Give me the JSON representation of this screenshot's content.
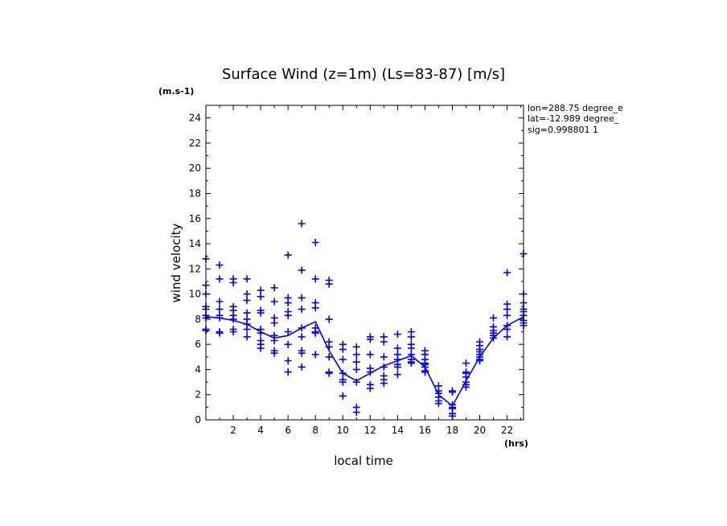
{
  "chart_data": {
    "type": "scatter",
    "title": "Surface Wind (z=1m) (Ls=83-87) [m/s]",
    "xlabel": "local time",
    "ylabel": "wind velocity",
    "x_unit": "(hrs)",
    "y_unit": "(m.s-1)",
    "xlim": [
      0,
      23.2
    ],
    "ylim": [
      0,
      25
    ],
    "xticks": [
      2,
      4,
      6,
      8,
      10,
      12,
      14,
      16,
      18,
      20,
      22
    ],
    "yticks": [
      0,
      2,
      4,
      6,
      8,
      10,
      12,
      14,
      16,
      18,
      20,
      22,
      24
    ],
    "grid": false,
    "color": "#0000ff",
    "annotations": [
      "lon=288.75 degree_e",
      "lat=-12.989 degree_",
      "sig=0.998801 1"
    ],
    "mean_line": {
      "x": [
        0,
        1,
        2,
        3,
        4,
        5,
        6,
        7,
        8,
        9,
        10,
        11,
        12,
        13,
        14,
        15,
        16,
        17,
        18,
        19,
        20,
        21,
        22,
        23.2
      ],
      "y": [
        8.2,
        8.1,
        7.9,
        7.6,
        7.0,
        6.5,
        6.7,
        7.3,
        7.8,
        5.5,
        3.7,
        3.1,
        3.7,
        4.3,
        4.7,
        5.1,
        4.2,
        2.0,
        1.1,
        3.1,
        5.0,
        6.5,
        7.5,
        8.2
      ]
    },
    "series": [
      {
        "x": [
          0,
          0,
          0,
          0,
          0,
          0,
          0,
          0,
          0
        ],
        "y": [
          12.8,
          10.7,
          10.0,
          9.0,
          8.8,
          8.3,
          8.1,
          7.2,
          7.1
        ]
      },
      {
        "x": [
          1,
          1,
          1,
          1,
          1,
          1,
          1,
          1
        ],
        "y": [
          12.3,
          11.2,
          9.4,
          8.8,
          8.3,
          8.1,
          7.0,
          6.9
        ]
      },
      {
        "x": [
          2,
          2,
          2,
          2,
          2,
          2,
          2,
          2
        ],
        "y": [
          11.2,
          10.9,
          9.0,
          8.7,
          8.3,
          8.0,
          7.2,
          7.0
        ]
      },
      {
        "x": [
          3,
          3,
          3,
          3,
          3,
          3,
          3,
          3
        ],
        "y": [
          11.2,
          10.0,
          9.5,
          8.5,
          8.0,
          7.6,
          7.2,
          6.6
        ]
      },
      {
        "x": [
          4,
          4,
          4,
          4,
          4,
          4,
          4,
          4,
          4
        ],
        "y": [
          10.3,
          9.8,
          8.7,
          8.5,
          7.2,
          6.9,
          6.3,
          6.0,
          5.7
        ]
      },
      {
        "x": [
          5,
          5,
          5,
          5,
          5,
          5,
          5,
          5
        ],
        "y": [
          10.5,
          9.4,
          8.1,
          7.7,
          6.7,
          6.3,
          5.5,
          5.3
        ]
      },
      {
        "x": [
          6,
          6,
          6,
          6,
          6,
          6,
          6,
          6,
          6
        ],
        "y": [
          13.1,
          9.7,
          9.3,
          8.6,
          8.3,
          7.0,
          6.0,
          4.7,
          3.8
        ]
      },
      {
        "x": [
          7,
          7,
          7,
          7,
          7,
          7,
          7,
          7,
          7
        ],
        "y": [
          15.6,
          11.9,
          9.7,
          8.8,
          7.3,
          6.6,
          5.5,
          5.3,
          4.2
        ]
      },
      {
        "x": [
          8,
          8,
          8,
          8,
          8,
          8,
          8,
          8
        ],
        "y": [
          14.1,
          11.2,
          9.3,
          8.9,
          7.3,
          7.0,
          6.9,
          5.2
        ]
      },
      {
        "x": [
          9,
          9,
          9,
          9,
          9,
          9,
          9,
          9
        ],
        "y": [
          11.1,
          10.8,
          8.0,
          6.2,
          5.8,
          5.0,
          3.8,
          3.7
        ]
      },
      {
        "x": [
          10,
          10,
          10,
          10,
          10,
          10,
          10
        ],
        "y": [
          6.0,
          5.6,
          4.8,
          3.7,
          3.2,
          3.0,
          1.9
        ]
      },
      {
        "x": [
          11,
          11,
          11,
          11,
          11,
          11,
          11
        ],
        "y": [
          5.8,
          5.2,
          4.6,
          4.0,
          3.0,
          1.0,
          0.6
        ]
      },
      {
        "x": [
          12,
          12,
          12,
          12,
          12,
          12,
          12
        ],
        "y": [
          6.6,
          6.4,
          5.2,
          4.1,
          3.8,
          2.8,
          2.5
        ]
      },
      {
        "x": [
          13,
          13,
          13,
          13,
          13,
          13,
          13
        ],
        "y": [
          6.6,
          6.2,
          5.0,
          4.2,
          3.5,
          3.2,
          2.9
        ]
      },
      {
        "x": [
          14,
          14,
          14,
          14,
          14,
          14,
          14
        ],
        "y": [
          6.8,
          5.7,
          5.2,
          4.8,
          4.4,
          4.2,
          3.6
        ]
      },
      {
        "x": [
          15,
          15,
          15,
          15,
          15,
          15,
          15,
          15
        ],
        "y": [
          7.0,
          6.6,
          6.0,
          5.7,
          5.2,
          4.8,
          4.6,
          4.5
        ]
      },
      {
        "x": [
          16,
          16,
          16,
          16,
          16,
          16,
          16,
          16
        ],
        "y": [
          5.5,
          5.2,
          4.8,
          4.5,
          4.4,
          4.2,
          3.9,
          3.8
        ]
      },
      {
        "x": [
          17,
          17,
          17,
          17,
          17,
          17
        ],
        "y": [
          2.7,
          2.3,
          2.1,
          1.8,
          1.5,
          1.3
        ]
      },
      {
        "x": [
          18,
          18,
          18,
          18,
          18,
          18,
          18
        ],
        "y": [
          2.3,
          2.2,
          1.2,
          1.0,
          0.9,
          0.5,
          0.3
        ]
      },
      {
        "x": [
          19,
          19,
          19,
          19,
          19,
          19,
          19
        ],
        "y": [
          4.5,
          3.8,
          3.7,
          3.4,
          3.0,
          2.8,
          2.6
        ]
      },
      {
        "x": [
          20,
          20,
          20,
          20,
          20,
          20,
          20,
          20
        ],
        "y": [
          6.2,
          5.9,
          5.6,
          5.4,
          5.2,
          5.0,
          4.8,
          4.7
        ]
      },
      {
        "x": [
          21,
          21,
          21,
          21,
          21,
          21
        ],
        "y": [
          8.1,
          7.4,
          7.1,
          6.9,
          6.7,
          6.5
        ]
      },
      {
        "x": [
          22,
          22,
          22,
          22,
          22,
          22,
          22
        ],
        "y": [
          11.7,
          9.2,
          8.8,
          8.3,
          7.5,
          7.2,
          6.6
        ]
      },
      {
        "x": [
          23.2,
          23.2,
          23.2,
          23.2,
          23.2,
          23.2,
          23.2,
          23.2,
          23.2
        ],
        "y": [
          13.2,
          10.0,
          9.3,
          8.8,
          8.6,
          8.3,
          7.9,
          7.7,
          7.5
        ]
      }
    ]
  }
}
